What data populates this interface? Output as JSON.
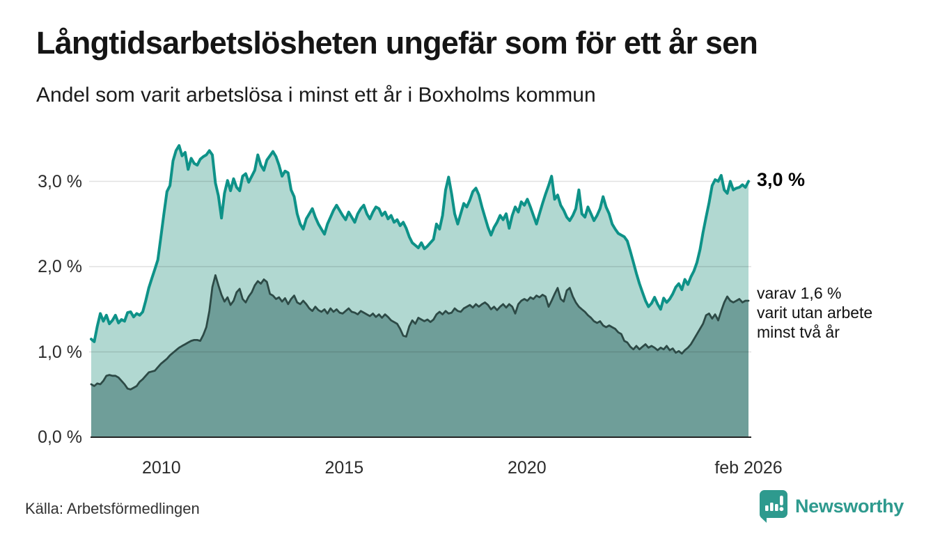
{
  "header": {
    "title": "Långtidsarbetslösheten ungefär som för ett år sen",
    "subtitle": "Andel som varit arbetslösa i minst ett år i Boxholms kommun"
  },
  "source": {
    "label": "Källa: Arbetsförmedlingen"
  },
  "branding": {
    "name": "Newsworthy",
    "color": "#2e9a8e",
    "icon": "newsworthy-speech-bubble-bar-chart"
  },
  "colors": {
    "series1_line": "#0e9288",
    "series1_fill": "#b1d8d1",
    "series2_line": "#2d4a46",
    "series2_fill": "#6f9e99",
    "gridline": "rgba(0,0,0,0.12)",
    "baseline": "#222222",
    "text": "#2b2b2b"
  },
  "chart_data": {
    "type": "area",
    "title": "Långtidsarbetslösheten ungefär som för ett år sen",
    "subtitle": "Andel som varit arbetslösa i minst ett år i Boxholms kommun",
    "xlabel": "",
    "ylabel": "",
    "ylim": [
      0,
      3.6
    ],
    "grid": "horizontal",
    "y_axis": {
      "ticks": [
        {
          "label": "0,0 %",
          "value": 0
        },
        {
          "label": "1,0 %",
          "value": 1
        },
        {
          "label": "2,0 %",
          "value": 2
        },
        {
          "label": "3,0 %",
          "value": 3
        }
      ]
    },
    "x_axis": {
      "ticks": [
        {
          "label": "2010",
          "year": 2010
        },
        {
          "label": "2015",
          "year": 2015
        },
        {
          "label": "2020",
          "year": 2020
        },
        {
          "label": "feb 2026",
          "year": 2026.06
        }
      ]
    },
    "series": [
      {
        "name": "Arbetslösa minst ett år",
        "line_color": "#0e9288",
        "fill_color": "#b1d8d1",
        "line_width": 4,
        "x_start": 2008.08,
        "x_end": 2026.06,
        "end_value": 3.0,
        "values": [
          1.15,
          1.12,
          1.3,
          1.45,
          1.36,
          1.43,
          1.33,
          1.37,
          1.43,
          1.34,
          1.38,
          1.36,
          1.46,
          1.47,
          1.41,
          1.45,
          1.43,
          1.47,
          1.6,
          1.75,
          1.86,
          1.97,
          2.08,
          2.35,
          2.62,
          2.88,
          2.95,
          3.24,
          3.36,
          3.42,
          3.3,
          3.34,
          3.14,
          3.27,
          3.21,
          3.19,
          3.26,
          3.29,
          3.31,
          3.36,
          3.31,
          2.98,
          2.83,
          2.57,
          2.86,
          3.01,
          2.89,
          3.03,
          2.93,
          2.89,
          3.06,
          3.09,
          2.99,
          3.06,
          3.13,
          3.31,
          3.19,
          3.13,
          3.25,
          3.3,
          3.35,
          3.29,
          3.19,
          3.06,
          3.12,
          3.1,
          2.9,
          2.82,
          2.62,
          2.5,
          2.44,
          2.56,
          2.62,
          2.68,
          2.58,
          2.5,
          2.44,
          2.38,
          2.5,
          2.58,
          2.66,
          2.72,
          2.66,
          2.6,
          2.55,
          2.64,
          2.58,
          2.52,
          2.62,
          2.68,
          2.72,
          2.62,
          2.56,
          2.64,
          2.7,
          2.68,
          2.6,
          2.64,
          2.56,
          2.6,
          2.52,
          2.55,
          2.48,
          2.52,
          2.45,
          2.35,
          2.28,
          2.25,
          2.22,
          2.28,
          2.21,
          2.24,
          2.28,
          2.32,
          2.5,
          2.44,
          2.6,
          2.9,
          3.05,
          2.85,
          2.62,
          2.5,
          2.62,
          2.74,
          2.7,
          2.78,
          2.88,
          2.92,
          2.84,
          2.7,
          2.58,
          2.46,
          2.37,
          2.46,
          2.52,
          2.6,
          2.55,
          2.62,
          2.45,
          2.6,
          2.7,
          2.64,
          2.76,
          2.72,
          2.79,
          2.7,
          2.6,
          2.5,
          2.62,
          2.74,
          2.85,
          2.95,
          3.06,
          2.79,
          2.84,
          2.72,
          2.66,
          2.58,
          2.54,
          2.6,
          2.68,
          2.9,
          2.62,
          2.58,
          2.7,
          2.62,
          2.54,
          2.6,
          2.68,
          2.82,
          2.7,
          2.62,
          2.5,
          2.44,
          2.39,
          2.37,
          2.35,
          2.3,
          2.18,
          2.05,
          1.92,
          1.8,
          1.7,
          1.6,
          1.53,
          1.57,
          1.64,
          1.56,
          1.5,
          1.63,
          1.58,
          1.62,
          1.68,
          1.76,
          1.8,
          1.73,
          1.85,
          1.79,
          1.88,
          1.95,
          2.05,
          2.2,
          2.4,
          2.58,
          2.75,
          2.95,
          3.02,
          3.0,
          3.07,
          2.9,
          2.86,
          3.0,
          2.9,
          2.92,
          2.93,
          2.96,
          2.93,
          3.0
        ]
      },
      {
        "name": "Arbetslösa minst två år",
        "line_color": "#2d4a46",
        "fill_color": "#6f9e99",
        "line_width": 2.8,
        "x_start": 2008.08,
        "x_end": 2026.06,
        "end_value": 1.6,
        "values": [
          0.62,
          0.6,
          0.63,
          0.62,
          0.66,
          0.72,
          0.73,
          0.72,
          0.72,
          0.7,
          0.66,
          0.62,
          0.57,
          0.56,
          0.58,
          0.6,
          0.65,
          0.68,
          0.72,
          0.76,
          0.77,
          0.78,
          0.82,
          0.86,
          0.89,
          0.92,
          0.96,
          0.99,
          1.02,
          1.05,
          1.07,
          1.09,
          1.11,
          1.13,
          1.14,
          1.14,
          1.13,
          1.2,
          1.29,
          1.48,
          1.76,
          1.9,
          1.78,
          1.67,
          1.59,
          1.64,
          1.55,
          1.6,
          1.7,
          1.74,
          1.62,
          1.58,
          1.65,
          1.7,
          1.78,
          1.83,
          1.8,
          1.85,
          1.82,
          1.68,
          1.66,
          1.62,
          1.64,
          1.59,
          1.63,
          1.56,
          1.62,
          1.66,
          1.58,
          1.56,
          1.6,
          1.56,
          1.51,
          1.48,
          1.53,
          1.49,
          1.47,
          1.5,
          1.45,
          1.51,
          1.47,
          1.5,
          1.46,
          1.45,
          1.48,
          1.51,
          1.47,
          1.46,
          1.44,
          1.48,
          1.46,
          1.44,
          1.42,
          1.45,
          1.41,
          1.44,
          1.4,
          1.44,
          1.41,
          1.37,
          1.35,
          1.33,
          1.27,
          1.19,
          1.18,
          1.3,
          1.37,
          1.33,
          1.4,
          1.38,
          1.36,
          1.38,
          1.35,
          1.38,
          1.44,
          1.47,
          1.44,
          1.48,
          1.45,
          1.46,
          1.51,
          1.48,
          1.47,
          1.51,
          1.53,
          1.55,
          1.52,
          1.56,
          1.53,
          1.56,
          1.58,
          1.55,
          1.5,
          1.53,
          1.49,
          1.53,
          1.56,
          1.52,
          1.56,
          1.53,
          1.45,
          1.56,
          1.6,
          1.62,
          1.6,
          1.64,
          1.62,
          1.66,
          1.64,
          1.67,
          1.65,
          1.53,
          1.6,
          1.68,
          1.75,
          1.62,
          1.59,
          1.72,
          1.75,
          1.65,
          1.58,
          1.53,
          1.5,
          1.47,
          1.43,
          1.4,
          1.36,
          1.34,
          1.36,
          1.31,
          1.29,
          1.31,
          1.29,
          1.27,
          1.23,
          1.21,
          1.13,
          1.11,
          1.06,
          1.03,
          1.07,
          1.03,
          1.06,
          1.09,
          1.05,
          1.07,
          1.05,
          1.02,
          1.05,
          1.03,
          1.07,
          1.02,
          1.04,
          0.99,
          1.01,
          0.98,
          1.02,
          1.05,
          1.09,
          1.15,
          1.21,
          1.27,
          1.33,
          1.43,
          1.45,
          1.39,
          1.44,
          1.37,
          1.48,
          1.58,
          1.65,
          1.6,
          1.58,
          1.6,
          1.62,
          1.58,
          1.6,
          1.6
        ]
      }
    ],
    "annotations": [
      {
        "text": "3,0 %",
        "value": 3.0,
        "style": "bold"
      },
      {
        "lines": [
          "varav 1,6 %",
          "varit utan arbete",
          "minst två år"
        ],
        "value": 1.6,
        "style": "plain"
      }
    ],
    "legend": "none"
  }
}
